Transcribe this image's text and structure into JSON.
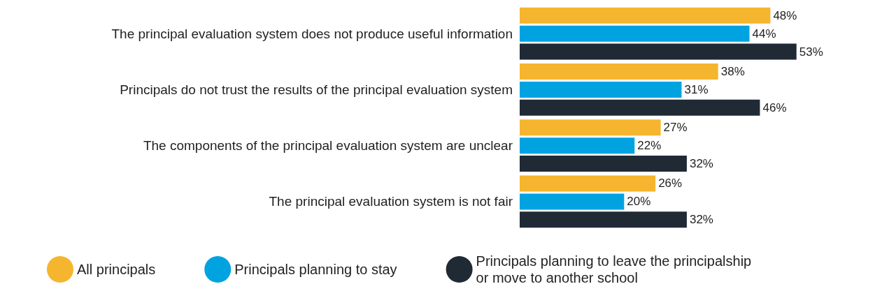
{
  "chart_data": {
    "type": "bar",
    "orientation": "horizontal",
    "legend": "bottom",
    "categories": [
      "The principal evaluation system does not produce useful information",
      "Principals do not trust the results of the principal evaluation system",
      "The components of the principal evaluation system are unclear",
      "The principal evaluation system is not fair"
    ],
    "series": [
      {
        "name": "All principals",
        "color": "#f5b52e",
        "values": [
          48,
          38,
          27,
          26
        ],
        "value_labels": [
          "48%",
          "38%",
          "27%",
          "26%"
        ]
      },
      {
        "name": "Principals planning to stay",
        "color": "#00a3e0",
        "values": [
          44,
          31,
          22,
          20
        ],
        "value_labels": [
          "44%",
          "31%",
          "22%",
          "20%"
        ]
      },
      {
        "name": "Principals planning to leave the principalship or move to another school",
        "color": "#1f2a35",
        "values": [
          53,
          46,
          32,
          32
        ],
        "value_labels": [
          "53%",
          "46%",
          "32%",
          "32%"
        ]
      }
    ]
  }
}
